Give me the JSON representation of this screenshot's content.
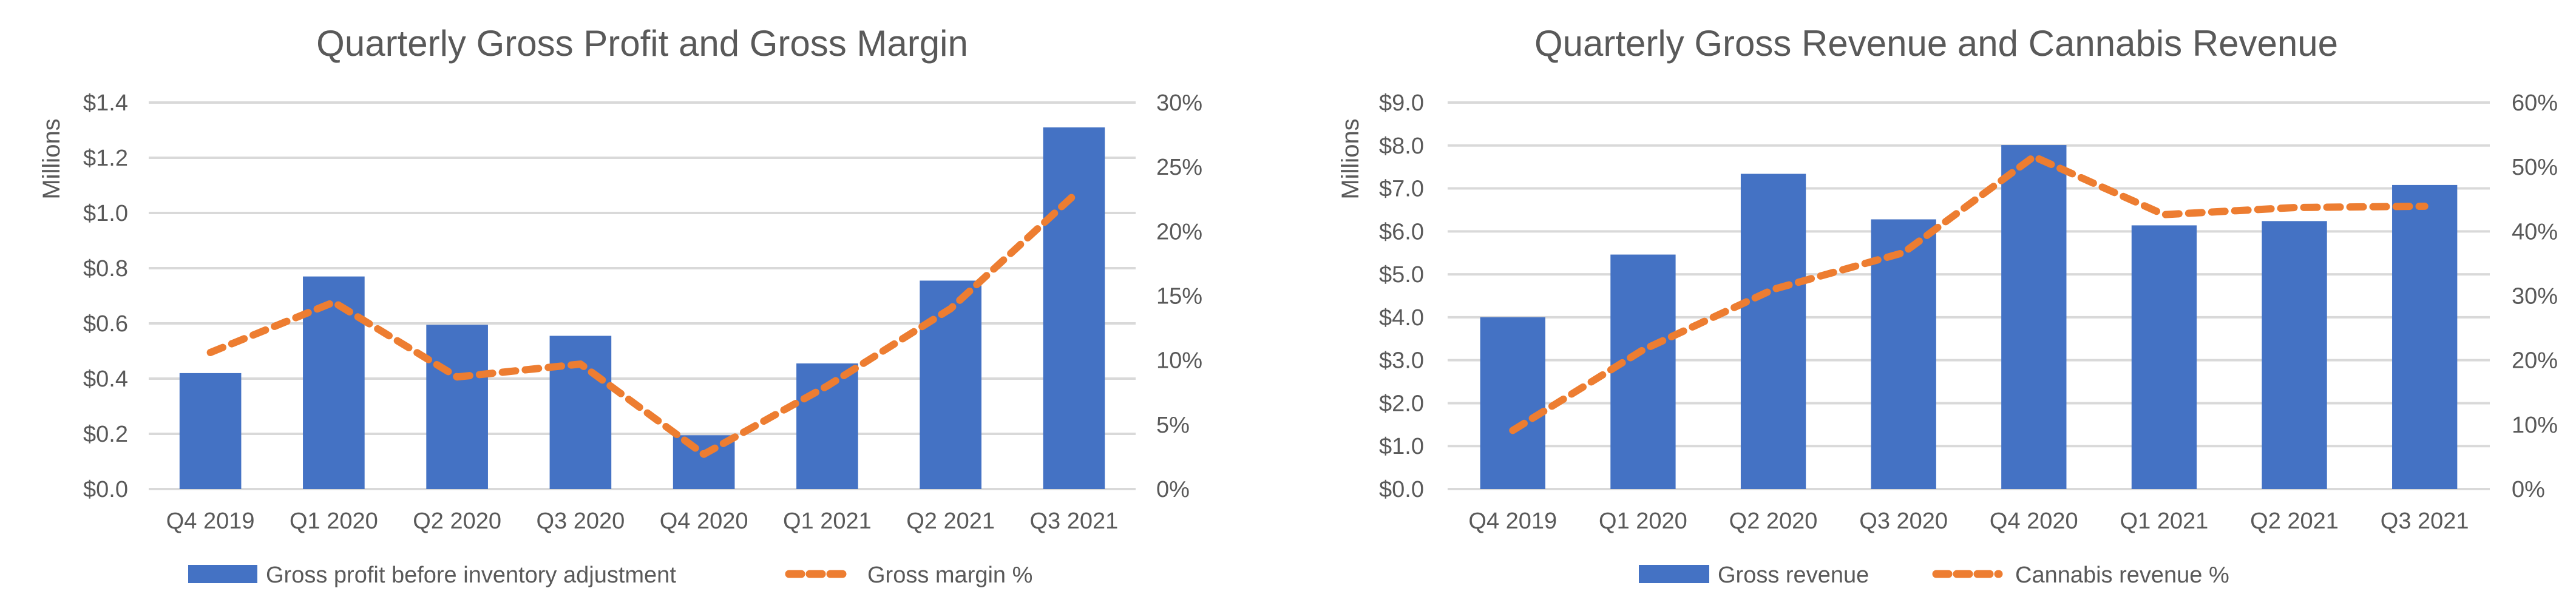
{
  "colors": {
    "bar": "#4472C4",
    "line": "#ED7D31",
    "grid": "#D9D9D9",
    "text": "#595959"
  },
  "chart_data": [
    {
      "type": "bar",
      "title": "Quarterly Gross Profit and Gross Margin",
      "ylabel": "Millions",
      "categories": [
        "Q4 2019",
        "Q1 2020",
        "Q2 2020",
        "Q3 2020",
        "Q4 2020",
        "Q1 2021",
        "Q2 2021",
        "Q3 2021"
      ],
      "ylim": [
        0,
        1.4
      ],
      "yticks": [
        "$0.0",
        "$0.2",
        "$0.4",
        "$0.6",
        "$0.8",
        "$1.0",
        "$1.2",
        "$1.4"
      ],
      "y2lim": [
        0,
        30
      ],
      "y2ticks": [
        "0%",
        "5%",
        "10%",
        "15%",
        "20%",
        "25%",
        "30%"
      ],
      "grid": true,
      "legend_position": "bottom",
      "series": [
        {
          "name": "Gross profit before inventory adjustment",
          "type": "bar",
          "axis": "left",
          "values": [
            0.42,
            0.77,
            0.595,
            0.555,
            0.195,
            0.455,
            0.755,
            1.31
          ]
        },
        {
          "name": "Gross margin %",
          "type": "line",
          "style": "dashed",
          "axis": "right",
          "values": [
            10.6,
            14.5,
            8.7,
            9.7,
            2.7,
            8.0,
            14.0,
            22.8
          ]
        }
      ]
    },
    {
      "type": "bar",
      "title": "Quarterly Gross Revenue and Cannabis Revenue",
      "ylabel": "Millions",
      "categories": [
        "Q4 2019",
        "Q1 2020",
        "Q2 2020",
        "Q3 2020",
        "Q4 2020",
        "Q1 2021",
        "Q2 2021",
        "Q3 2021"
      ],
      "ylim": [
        0,
        9
      ],
      "yticks": [
        "$0.0",
        "$1.0",
        "$2.0",
        "$3.0",
        "$4.0",
        "$5.0",
        "$6.0",
        "$7.0",
        "$8.0",
        "$9.0"
      ],
      "y2lim": [
        0,
        60
      ],
      "y2ticks": [
        "0%",
        "10%",
        "20%",
        "30%",
        "40%",
        "50%",
        "60%"
      ],
      "grid": true,
      "legend_position": "bottom",
      "series": [
        {
          "name": "Gross revenue",
          "type": "bar",
          "axis": "left",
          "values": [
            4.0,
            5.46,
            7.34,
            6.28,
            8.01,
            6.14,
            6.24,
            7.08
          ]
        },
        {
          "name": "Cannabis revenue %",
          "type": "line",
          "style": "dashed",
          "axis": "right",
          "values": [
            9.1,
            21.6,
            31.0,
            36.7,
            51.6,
            42.6,
            43.7,
            43.9
          ]
        }
      ]
    }
  ]
}
